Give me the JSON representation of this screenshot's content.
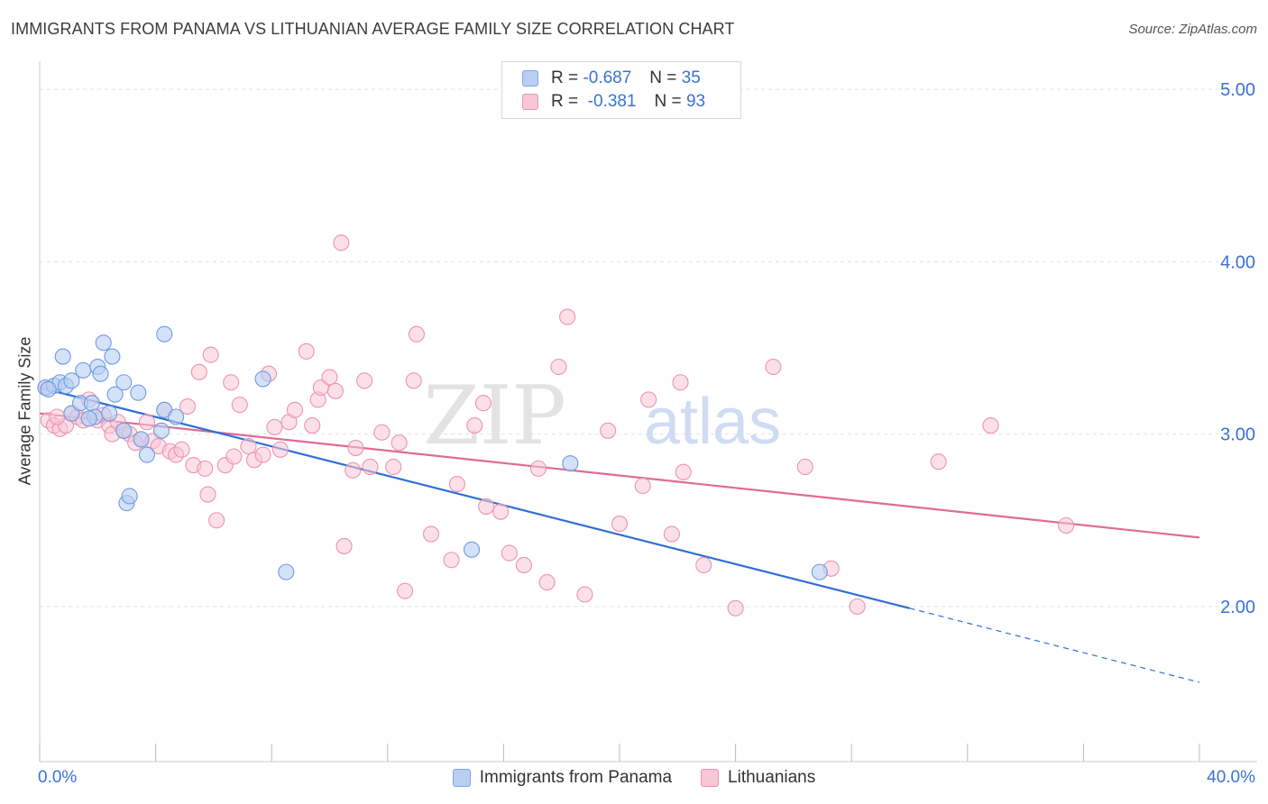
{
  "header": {
    "title": "IMMIGRANTS FROM PANAMA VS LITHUANIAN AVERAGE FAMILY SIZE CORRELATION CHART",
    "source": "Source: ZipAtlas.com"
  },
  "legend": {
    "r_label": "R =",
    "n_label": "N =",
    "panama": {
      "r": "-0.687",
      "n": "35"
    },
    "lithuanians": {
      "r": "-0.381",
      "n": "93"
    }
  },
  "watermark": {
    "zip": "ZIP",
    "atlas": "atlas"
  },
  "colors": {
    "panama_fill": "#b7cff3",
    "panama_stroke": "#6f9be0",
    "panama_line": "#2f6fd6",
    "lithuanians_fill": "#f9c6d6",
    "lithuanians_stroke": "#ec93b1",
    "lithuanians_line": "#e06a96",
    "axis_text": "#3a72d4",
    "grid": "#e2e2e2"
  },
  "chart_data": {
    "type": "scatter",
    "title": "IMMIGRANTS FROM PANAMA VS LITHUANIAN AVERAGE FAMILY SIZE CORRELATION CHART",
    "xlabel": "",
    "ylabel": "Average Family Size",
    "xlim": [
      0,
      40
    ],
    "ylim": [
      1.1,
      5.1
    ],
    "x_tick_labels": [
      "0.0%",
      "40.0%"
    ],
    "y_ticks": [
      2.0,
      3.0,
      4.0,
      5.0
    ],
    "y_tick_labels": [
      "2.00",
      "3.00",
      "4.00",
      "5.00"
    ],
    "grid": true,
    "legend_position": "top-center",
    "series": [
      {
        "name": "Immigrants from Panama",
        "color": "#b7cff3",
        "points": [
          [
            0.2,
            3.27
          ],
          [
            0.5,
            3.28
          ],
          [
            0.7,
            3.3
          ],
          [
            0.8,
            3.45
          ],
          [
            0.9,
            3.28
          ],
          [
            1.1,
            3.12
          ],
          [
            1.1,
            3.31
          ],
          [
            1.4,
            3.18
          ],
          [
            1.5,
            3.37
          ],
          [
            1.8,
            3.18
          ],
          [
            1.9,
            3.1
          ],
          [
            2.0,
            3.39
          ],
          [
            2.1,
            3.35
          ],
          [
            2.2,
            3.53
          ],
          [
            2.4,
            3.12
          ],
          [
            2.5,
            3.45
          ],
          [
            2.6,
            3.23
          ],
          [
            2.9,
            3.3
          ],
          [
            3.0,
            2.6
          ],
          [
            3.1,
            2.64
          ],
          [
            3.4,
            3.24
          ],
          [
            3.5,
            2.97
          ],
          [
            3.7,
            2.88
          ],
          [
            4.2,
            3.02
          ],
          [
            4.3,
            3.58
          ],
          [
            4.3,
            3.14
          ],
          [
            4.7,
            3.1
          ],
          [
            7.7,
            3.32
          ],
          [
            8.5,
            2.2
          ],
          [
            14.9,
            2.33
          ],
          [
            18.3,
            2.83
          ],
          [
            26.9,
            2.2
          ],
          [
            0.3,
            3.26
          ],
          [
            1.7,
            3.09
          ],
          [
            2.9,
            3.02
          ]
        ],
        "trend": {
          "x": [
            0,
            30
          ],
          "y": [
            3.27,
            1.99
          ],
          "dashed_extension": {
            "x": [
              30,
              40
            ],
            "y": [
              1.99,
              1.56
            ]
          }
        }
      },
      {
        "name": "Lithuanians",
        "color": "#f9c6d6",
        "points": [
          [
            0.2,
            3.27
          ],
          [
            0.3,
            3.08
          ],
          [
            0.5,
            3.05
          ],
          [
            0.7,
            3.03
          ],
          [
            0.9,
            3.05
          ],
          [
            1.1,
            3.12
          ],
          [
            1.3,
            3.1
          ],
          [
            1.5,
            3.08
          ],
          [
            1.7,
            3.2
          ],
          [
            2.0,
            3.08
          ],
          [
            2.2,
            3.11
          ],
          [
            2.4,
            3.05
          ],
          [
            2.5,
            3.0
          ],
          [
            2.7,
            3.07
          ],
          [
            2.9,
            3.02
          ],
          [
            3.1,
            3.0
          ],
          [
            3.3,
            2.95
          ],
          [
            3.5,
            2.97
          ],
          [
            3.7,
            3.07
          ],
          [
            3.9,
            2.96
          ],
          [
            4.1,
            2.93
          ],
          [
            4.3,
            3.14
          ],
          [
            4.5,
            2.9
          ],
          [
            4.7,
            2.88
          ],
          [
            4.9,
            2.91
          ],
          [
            5.1,
            3.16
          ],
          [
            5.3,
            2.82
          ],
          [
            5.5,
            3.36
          ],
          [
            5.7,
            2.8
          ],
          [
            5.8,
            2.65
          ],
          [
            5.9,
            3.46
          ],
          [
            6.1,
            2.5
          ],
          [
            6.4,
            2.82
          ],
          [
            6.6,
            3.3
          ],
          [
            6.7,
            2.87
          ],
          [
            6.9,
            3.17
          ],
          [
            7.2,
            2.93
          ],
          [
            7.4,
            2.85
          ],
          [
            7.7,
            2.88
          ],
          [
            7.9,
            3.35
          ],
          [
            8.1,
            3.04
          ],
          [
            8.3,
            2.91
          ],
          [
            8.6,
            3.07
          ],
          [
            8.8,
            3.14
          ],
          [
            9.2,
            3.48
          ],
          [
            9.4,
            3.05
          ],
          [
            9.6,
            3.2
          ],
          [
            9.7,
            3.27
          ],
          [
            10.0,
            3.33
          ],
          [
            10.2,
            3.25
          ],
          [
            10.4,
            4.11
          ],
          [
            10.5,
            2.35
          ],
          [
            10.8,
            2.79
          ],
          [
            10.9,
            2.92
          ],
          [
            11.2,
            3.31
          ],
          [
            11.4,
            2.81
          ],
          [
            11.8,
            3.01
          ],
          [
            12.2,
            2.81
          ],
          [
            12.4,
            2.95
          ],
          [
            12.6,
            2.09
          ],
          [
            12.9,
            3.31
          ],
          [
            13.0,
            3.58
          ],
          [
            13.5,
            2.42
          ],
          [
            14.2,
            2.27
          ],
          [
            14.4,
            2.71
          ],
          [
            15.0,
            3.05
          ],
          [
            15.3,
            3.18
          ],
          [
            15.4,
            2.58
          ],
          [
            15.9,
            2.55
          ],
          [
            16.2,
            2.31
          ],
          [
            16.7,
            2.24
          ],
          [
            17.2,
            2.8
          ],
          [
            17.5,
            2.14
          ],
          [
            17.9,
            3.39
          ],
          [
            18.2,
            3.68
          ],
          [
            18.8,
            2.07
          ],
          [
            19.6,
            3.02
          ],
          [
            20.0,
            2.48
          ],
          [
            20.8,
            2.7
          ],
          [
            21.0,
            3.2
          ],
          [
            21.8,
            2.42
          ],
          [
            22.1,
            3.3
          ],
          [
            22.2,
            2.78
          ],
          [
            22.9,
            2.24
          ],
          [
            24.0,
            1.99
          ],
          [
            25.3,
            3.39
          ],
          [
            26.4,
            2.81
          ],
          [
            27.3,
            2.22
          ],
          [
            28.2,
            2.0
          ],
          [
            31.0,
            2.84
          ],
          [
            32.8,
            3.05
          ],
          [
            35.4,
            2.47
          ],
          [
            0.6,
            3.1
          ]
        ],
        "trend": {
          "x": [
            0,
            40
          ],
          "y": [
            3.12,
            2.4
          ]
        }
      }
    ]
  }
}
